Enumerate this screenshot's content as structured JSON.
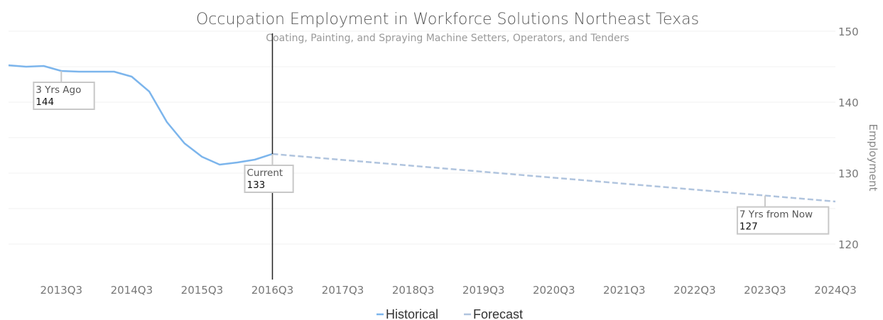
{
  "chart_data": {
    "type": "line",
    "title": "Occupation Employment in Workforce Solutions Northeast Texas",
    "subtitle": "Coating, Painting, and Spraying Machine Setters, Operators, and Tenders",
    "ylabel": "Employment",
    "ylim": [
      115,
      150
    ],
    "yticks": [
      120,
      130,
      140,
      150
    ],
    "xticks": [
      "2013Q3",
      "2014Q3",
      "2015Q3",
      "2016Q3",
      "2017Q3",
      "2018Q3",
      "2019Q3",
      "2020Q3",
      "2021Q3",
      "2022Q3",
      "2023Q3",
      "2024Q3"
    ],
    "xlim": [
      "2012Q4",
      "2024Q3"
    ],
    "current_marker": "2016Q3",
    "series": [
      {
        "name": "Historical",
        "color": "#7cb5ec",
        "style": "solid",
        "points": [
          [
            "2012Q4",
            145.2
          ],
          [
            "2013Q1",
            145.0
          ],
          [
            "2013Q2",
            145.1
          ],
          [
            "2013Q3",
            144.4
          ],
          [
            "2013Q4",
            144.3
          ],
          [
            "2014Q1",
            144.3
          ],
          [
            "2014Q2",
            144.3
          ],
          [
            "2014Q3",
            143.6
          ],
          [
            "2014Q4",
            141.5
          ],
          [
            "2015Q1",
            137.2
          ],
          [
            "2015Q2",
            134.2
          ],
          [
            "2015Q3",
            132.3
          ],
          [
            "2015Q4",
            131.2
          ],
          [
            "2016Q1",
            131.5
          ],
          [
            "2016Q2",
            131.9
          ],
          [
            "2016Q3",
            132.7
          ]
        ]
      },
      {
        "name": "Forecast",
        "color": "#b0c4de",
        "style": "dashed",
        "points": [
          [
            "2016Q3",
            132.7
          ],
          [
            "2024Q3",
            126.0
          ]
        ]
      }
    ],
    "annotations": [
      {
        "label": "3 Yrs Ago",
        "value": "144",
        "at": "2013Q3"
      },
      {
        "label": "Current",
        "value": "133",
        "at": "2016Q3"
      },
      {
        "label": "7 Yrs from Now",
        "value": "127",
        "at": "2023Q3"
      }
    ],
    "legend": "bottom-center",
    "grid": true
  }
}
